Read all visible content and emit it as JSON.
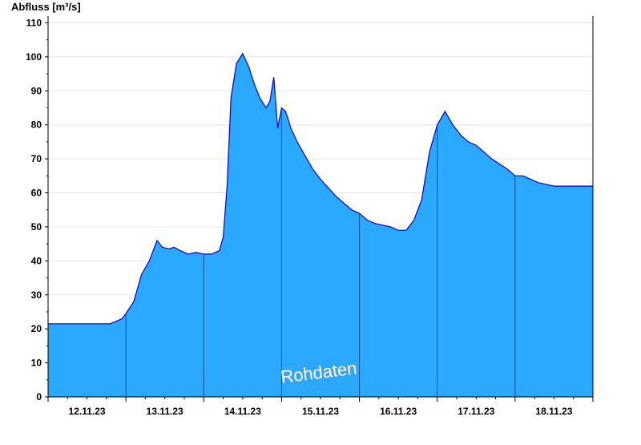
{
  "chart_data": {
    "type": "area",
    "ylabel": "Abfluss [m³/s]",
    "watermark": "Rohdaten",
    "ylim": [
      0,
      112
    ],
    "yticks": [
      0,
      10,
      20,
      30,
      40,
      50,
      60,
      70,
      80,
      90,
      100,
      110
    ],
    "x_unit": "day index (0 = start of 12.11.23)",
    "xlim": [
      0,
      7
    ],
    "day_labels": [
      "12.11.23",
      "13.11.23",
      "14.11.23",
      "15.11.23",
      "16.11.23",
      "17.11.23",
      "18.11.23"
    ],
    "day_boundaries": [
      1,
      2,
      3,
      4,
      5,
      6
    ],
    "colors": {
      "fill": "#2ba8ff",
      "line": "#0000cc",
      "day_line": "#1a4f8a"
    },
    "series": [
      {
        "x": [
          0,
          0.8,
          0.85,
          0.95,
          1.0,
          1.1,
          1.2,
          1.3,
          1.4,
          1.47,
          1.55,
          1.62,
          1.7,
          1.8,
          1.9,
          2.0,
          2.1,
          2.2,
          2.25,
          2.3,
          2.35,
          2.42,
          2.5,
          2.58,
          2.65,
          2.72,
          2.8,
          2.85,
          2.9,
          2.95,
          3.0,
          3.05,
          3.08,
          3.12,
          3.2,
          3.3,
          3.4,
          3.5,
          3.6,
          3.7,
          3.8,
          3.9,
          4.0,
          4.1,
          4.2,
          4.3,
          4.4,
          4.5,
          4.6,
          4.7,
          4.8,
          4.9,
          5.0,
          5.1,
          5.2,
          5.3,
          5.4,
          5.5,
          5.6,
          5.7,
          5.8,
          5.9,
          6.0,
          6.1,
          6.2,
          6.3,
          6.4,
          6.5,
          6.6,
          6.7,
          6.8,
          6.9,
          7.0
        ],
        "y": [
          21.5,
          21.5,
          22,
          23,
          24.5,
          28,
          36,
          40,
          46,
          44,
          43.5,
          44,
          43,
          42,
          42.5,
          42,
          42,
          43,
          47,
          62,
          88,
          98,
          101,
          97,
          92,
          88,
          85,
          87,
          94,
          79,
          85,
          84,
          82,
          79,
          75,
          71,
          67,
          64,
          61.5,
          59,
          57,
          55,
          54,
          52,
          51,
          50.5,
          50,
          49,
          49,
          52,
          58,
          72,
          80,
          84,
          80,
          77,
          75,
          74,
          72,
          70,
          68.5,
          67,
          65,
          65,
          64,
          63,
          62.5,
          62,
          62,
          62,
          62,
          62,
          62
        ]
      }
    ]
  }
}
